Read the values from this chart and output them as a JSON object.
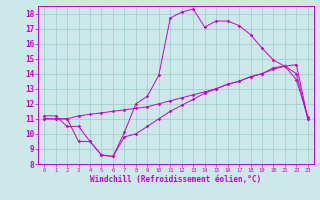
{
  "xlabel": "Windchill (Refroidissement éolien,°C)",
  "bg_color": "#cce8e8",
  "line_color": "#cc00cc",
  "grid_color": "#99cccc",
  "xlim": [
    -0.5,
    23.5
  ],
  "ylim": [
    8,
    18.5
  ],
  "xticks": [
    0,
    1,
    2,
    3,
    4,
    5,
    6,
    7,
    8,
    9,
    10,
    11,
    12,
    13,
    14,
    15,
    16,
    17,
    18,
    19,
    20,
    21,
    22,
    23
  ],
  "yticks": [
    8,
    9,
    10,
    11,
    12,
    13,
    14,
    15,
    16,
    17,
    18
  ],
  "curve1_x": [
    0,
    1,
    2,
    3,
    4,
    5,
    6,
    7,
    8,
    9,
    10,
    11,
    12,
    13,
    14,
    15,
    16,
    17,
    18,
    19,
    20,
    21,
    22,
    23
  ],
  "curve1_y": [
    11.2,
    11.2,
    10.5,
    10.5,
    9.5,
    8.6,
    8.5,
    10.1,
    12.0,
    12.5,
    13.9,
    17.7,
    18.1,
    18.3,
    17.1,
    17.5,
    17.5,
    17.2,
    16.6,
    15.7,
    14.9,
    14.5,
    13.6,
    11.1
  ],
  "curve2_x": [
    0,
    1,
    2,
    3,
    4,
    5,
    6,
    7,
    8,
    9,
    10,
    11,
    12,
    13,
    14,
    15,
    16,
    17,
    18,
    19,
    20,
    21,
    22,
    23
  ],
  "curve2_y": [
    11.0,
    11.0,
    11.0,
    11.2,
    11.3,
    11.4,
    11.5,
    11.6,
    11.7,
    11.8,
    12.0,
    12.2,
    12.4,
    12.6,
    12.8,
    13.0,
    13.3,
    13.5,
    13.8,
    14.0,
    14.3,
    14.5,
    14.6,
    11.0
  ],
  "curve3_x": [
    0,
    1,
    2,
    3,
    4,
    5,
    6,
    7,
    8,
    9,
    10,
    11,
    12,
    13,
    14,
    15,
    16,
    17,
    18,
    19,
    20,
    21,
    22,
    23
  ],
  "curve3_y": [
    11.0,
    11.0,
    11.0,
    9.5,
    9.5,
    8.6,
    8.5,
    9.8,
    10.0,
    10.5,
    11.0,
    11.5,
    11.9,
    12.3,
    12.7,
    13.0,
    13.3,
    13.5,
    13.8,
    14.0,
    14.4,
    14.5,
    14.0,
    11.0
  ]
}
